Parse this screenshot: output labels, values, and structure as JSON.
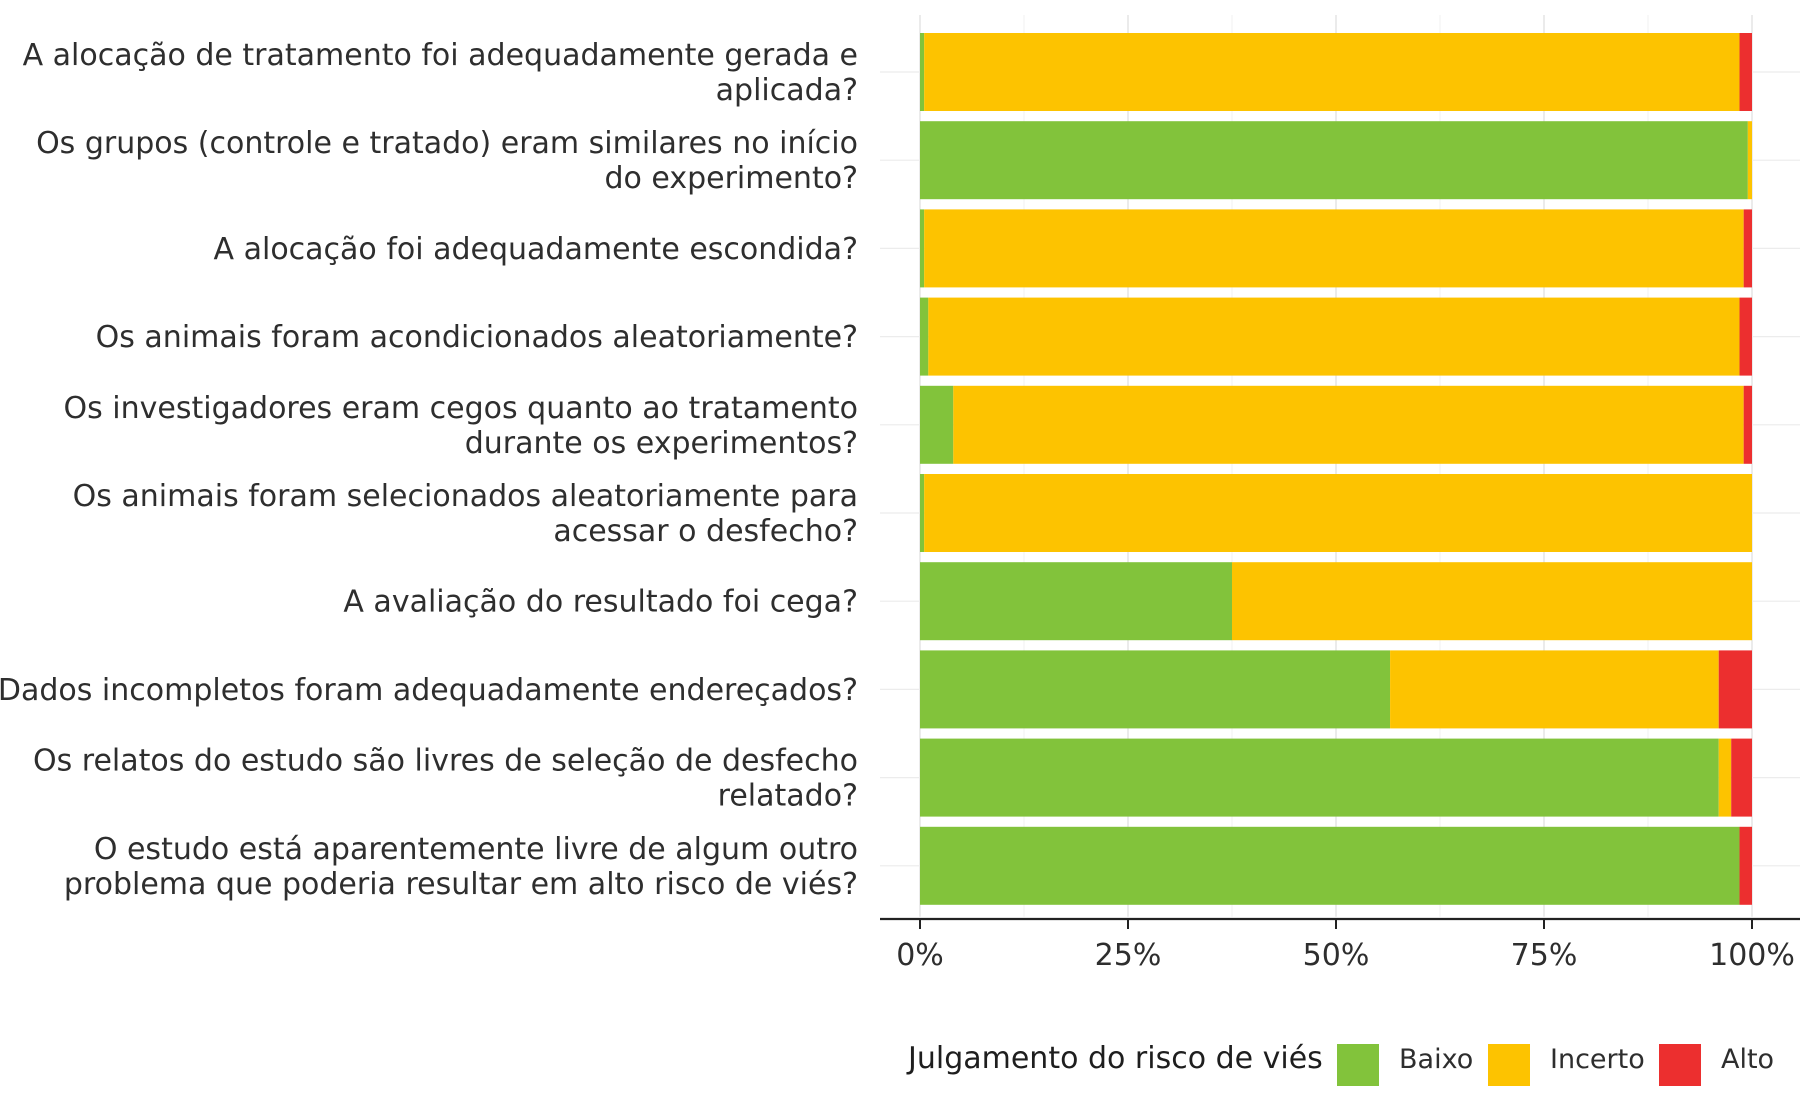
{
  "chart_data": {
    "type": "bar",
    "orientation": "horizontal",
    "stacked": true,
    "categories": [
      "A alocação de tratamento foi adequadamente gerada e\naplicada?",
      "Os grupos (controle e tratado) eram similares no início\ndo experimento?",
      "A alocação foi adequadamente escondida?",
      "Os animais foram acondicionados aleatoriamente?",
      "Os investigadores eram cegos quanto ao tratamento\ndurante os experimentos?",
      "Os animais foram selecionados aleatoriamente para\nacessar o desfecho?",
      "A avaliação do resultado foi cega?",
      "Dados incompletos foram adequadamente endereçados?",
      "Os relatos do estudo são livres de seleção de desfecho\nrelatado?",
      "O estudo está aparentemente livre de algum outro\nproblema que poderia resultar em alto risco de viés?"
    ],
    "series": [
      {
        "name": "Baixo",
        "color": "#82c33b",
        "values": [
          0.5,
          99.5,
          0.5,
          1.0,
          4.0,
          0.5,
          37.5,
          56.5,
          96.0,
          98.5
        ]
      },
      {
        "name": "Incerto",
        "color": "#fdc300",
        "values": [
          98.0,
          0.5,
          98.5,
          97.5,
          95.0,
          99.5,
          62.5,
          39.5,
          1.5,
          0.0
        ]
      },
      {
        "name": "Alto",
        "color": "#ec2f2f",
        "values": [
          1.5,
          0.0,
          1.0,
          1.5,
          1.0,
          0.0,
          0.0,
          4.0,
          2.5,
          1.5
        ]
      }
    ],
    "x_ticks": [
      "0%",
      "25%",
      "50%",
      "75%",
      "100%"
    ],
    "xlim": [
      0,
      100
    ],
    "xlabel": "",
    "ylabel": "",
    "grid": true,
    "legend": {
      "title": "Julgamento do risco de viés",
      "position": "bottom",
      "items": [
        "Baixo",
        "Incerto",
        "Alto"
      ]
    }
  }
}
